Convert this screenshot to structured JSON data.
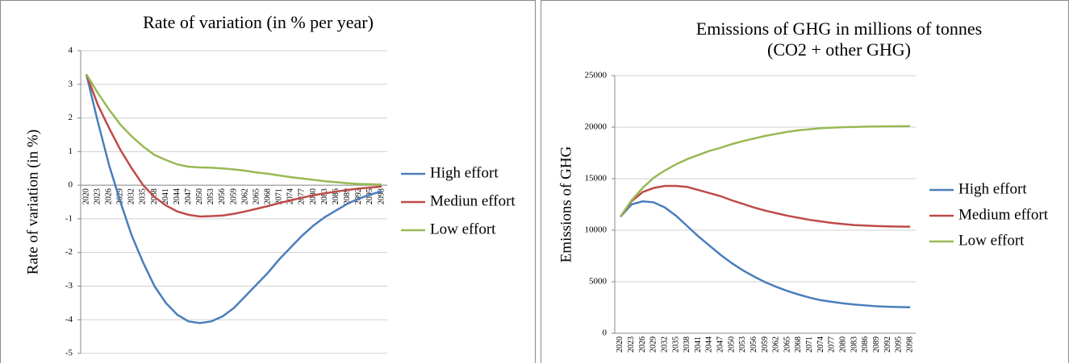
{
  "chart_data": [
    {
      "type": "line",
      "title": [
        "Rate of variation (in % per year)"
      ],
      "y_label": "Rate of variation (in %)",
      "categories": [
        "2020",
        "2023",
        "2026",
        "2029",
        "2032",
        "2035",
        "2038",
        "2041",
        "2044",
        "2047",
        "2050",
        "2053",
        "2056",
        "2059",
        "2062",
        "2065",
        "2068",
        "2071",
        "2074",
        "2077",
        "2080",
        "2083",
        "2086",
        "2089",
        "2092",
        "2095",
        "2098"
      ],
      "series": [
        {
          "name": "High effort",
          "color": "#4a7ebb",
          "values": [
            3.3,
            1.9,
            0.6,
            -0.5,
            -1.5,
            -2.3,
            -3.0,
            -3.5,
            -3.85,
            -4.05,
            -4.1,
            -4.05,
            -3.9,
            -3.65,
            -3.3,
            -2.95,
            -2.6,
            -2.2,
            -1.85,
            -1.5,
            -1.2,
            -0.95,
            -0.75,
            -0.55,
            -0.4,
            -0.28,
            -0.18
          ]
        },
        {
          "name": "Mediun effort",
          "color": "#be4b48",
          "values": [
            3.3,
            2.4,
            1.7,
            1.05,
            0.5,
            0.0,
            -0.35,
            -0.6,
            -0.78,
            -0.88,
            -0.93,
            -0.92,
            -0.9,
            -0.85,
            -0.78,
            -0.7,
            -0.62,
            -0.53,
            -0.45,
            -0.37,
            -0.3,
            -0.24,
            -0.19,
            -0.14,
            -0.1,
            -0.07,
            -0.04
          ]
        },
        {
          "name": "Low effort",
          "color": "#98b954",
          "values": [
            3.3,
            2.75,
            2.25,
            1.8,
            1.45,
            1.15,
            0.9,
            0.75,
            0.62,
            0.55,
            0.53,
            0.52,
            0.5,
            0.47,
            0.43,
            0.38,
            0.34,
            0.29,
            0.24,
            0.2,
            0.16,
            0.12,
            0.09,
            0.06,
            0.04,
            0.03,
            0.02
          ]
        }
      ],
      "ylim": [
        -5,
        4
      ],
      "yticks": [
        -5,
        -4,
        -3,
        -2,
        -1,
        0,
        1,
        2,
        3,
        4
      ],
      "grid": true
    },
    {
      "type": "line",
      "title": [
        "Emissions of GHG in millions of tonnes",
        "(CO2 + other GHG)"
      ],
      "y_label": "Emissions of GHG",
      "categories": [
        "2020",
        "2023",
        "2026",
        "2029",
        "2032",
        "2035",
        "2038",
        "2041",
        "2044",
        "2047",
        "2050",
        "2053",
        "2056",
        "2059",
        "2062",
        "2065",
        "2068",
        "2071",
        "2074",
        "2077",
        "2080",
        "2083",
        "2086",
        "2089",
        "2092",
        "2095",
        "2098"
      ],
      "series": [
        {
          "name": "High effort",
          "color": "#4a7ebb",
          "values": [
            11300,
            12500,
            12800,
            12700,
            12200,
            11400,
            10400,
            9400,
            8500,
            7600,
            6800,
            6100,
            5500,
            4950,
            4500,
            4100,
            3750,
            3450,
            3200,
            3050,
            2900,
            2780,
            2700,
            2620,
            2570,
            2540,
            2520
          ]
        },
        {
          "name": "Medium effort",
          "color": "#be4b48",
          "values": [
            11300,
            12800,
            13700,
            14100,
            14300,
            14300,
            14200,
            13900,
            13600,
            13300,
            12900,
            12550,
            12200,
            11900,
            11650,
            11400,
            11200,
            11000,
            10850,
            10700,
            10600,
            10500,
            10450,
            10400,
            10370,
            10350,
            10340
          ]
        },
        {
          "name": "Low effort",
          "color": "#98b954",
          "values": [
            11300,
            12900,
            14100,
            15100,
            15800,
            16400,
            16900,
            17300,
            17700,
            18000,
            18350,
            18650,
            18900,
            19150,
            19350,
            19550,
            19700,
            19800,
            19900,
            19950,
            20000,
            20020,
            20050,
            20070,
            20080,
            20090,
            20100
          ]
        }
      ],
      "ylim": [
        0,
        25000
      ],
      "yticks": [
        0,
        5000,
        10000,
        15000,
        20000,
        25000
      ],
      "grid": true
    }
  ]
}
